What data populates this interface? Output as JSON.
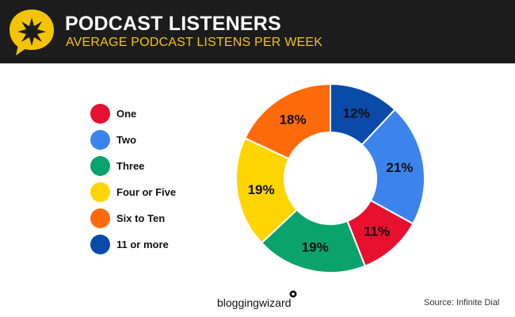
{
  "header": {
    "title": "PODCAST LISTENERS",
    "subtitle": "AVERAGE PODCAST LISTENS PER WEEK"
  },
  "colors": {
    "header_bg": "#1c1c1c",
    "accent": "#f4c400",
    "one": "#e8102f",
    "two": "#3c84ec",
    "three": "#0aa36d",
    "four_or_five": "#ffd500",
    "six_to_ten": "#ff6a0b",
    "eleven_or_more": "#0a4aa9"
  },
  "icons": {
    "badge": "star-speech-bubble-icon",
    "brand": "brand-logo-icon"
  },
  "chart_data": {
    "type": "pie",
    "style": "donut",
    "categories": [
      "One",
      "Two",
      "Three",
      "Four or Five",
      "Six to Ten",
      "11 or more"
    ],
    "values": [
      11,
      21,
      19,
      19,
      18,
      12
    ],
    "labels": [
      "11%",
      "21%",
      "19%",
      "19%",
      "18%",
      "12%"
    ],
    "colors": [
      "#e8102f",
      "#3c84ec",
      "#0aa36d",
      "#ffd500",
      "#ff6a0b",
      "#0a4aa9"
    ],
    "draw_order": [
      5,
      1,
      0,
      2,
      3,
      4
    ],
    "legend_position": "left"
  },
  "footer": {
    "brand": "bloggingwizard",
    "source": "Source: Infinite Dial"
  }
}
